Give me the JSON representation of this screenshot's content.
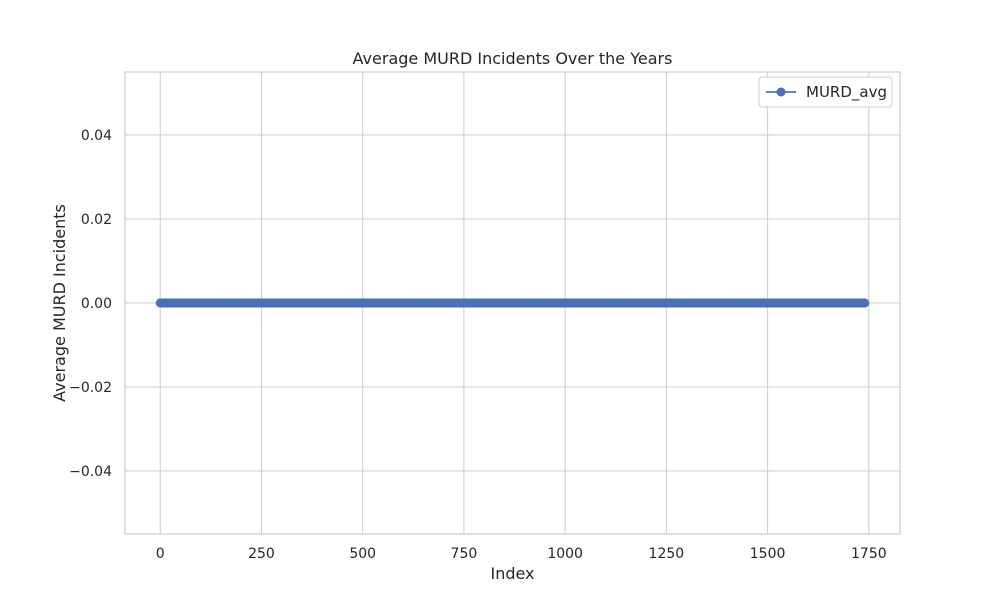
{
  "chart_data": {
    "type": "line",
    "title": "Average MURD Incidents Over the Years",
    "xlabel": "Index",
    "ylabel": "Average MURD Incidents",
    "xlim": [
      -87,
      1827
    ],
    "ylim": [
      -0.055,
      0.055
    ],
    "x_ticks": [
      0,
      250,
      500,
      750,
      1000,
      1250,
      1500,
      1750
    ],
    "y_ticks": [
      -0.04,
      -0.02,
      0.0,
      0.02,
      0.04
    ],
    "x_tick_labels": [
      "0",
      "250",
      "500",
      "750",
      "1000",
      "1250",
      "1500",
      "1750"
    ],
    "y_tick_labels": [
      "−0.04",
      "−0.02",
      "0.00",
      "0.02",
      "0.04"
    ],
    "grid": true,
    "legend_position": "top-right",
    "series": [
      {
        "name": "MURD_avg",
        "color": "#4c72b0",
        "marker": "circle",
        "x_start": 0,
        "x_end": 1740,
        "x_step": 1,
        "value": 0.0
      }
    ]
  }
}
